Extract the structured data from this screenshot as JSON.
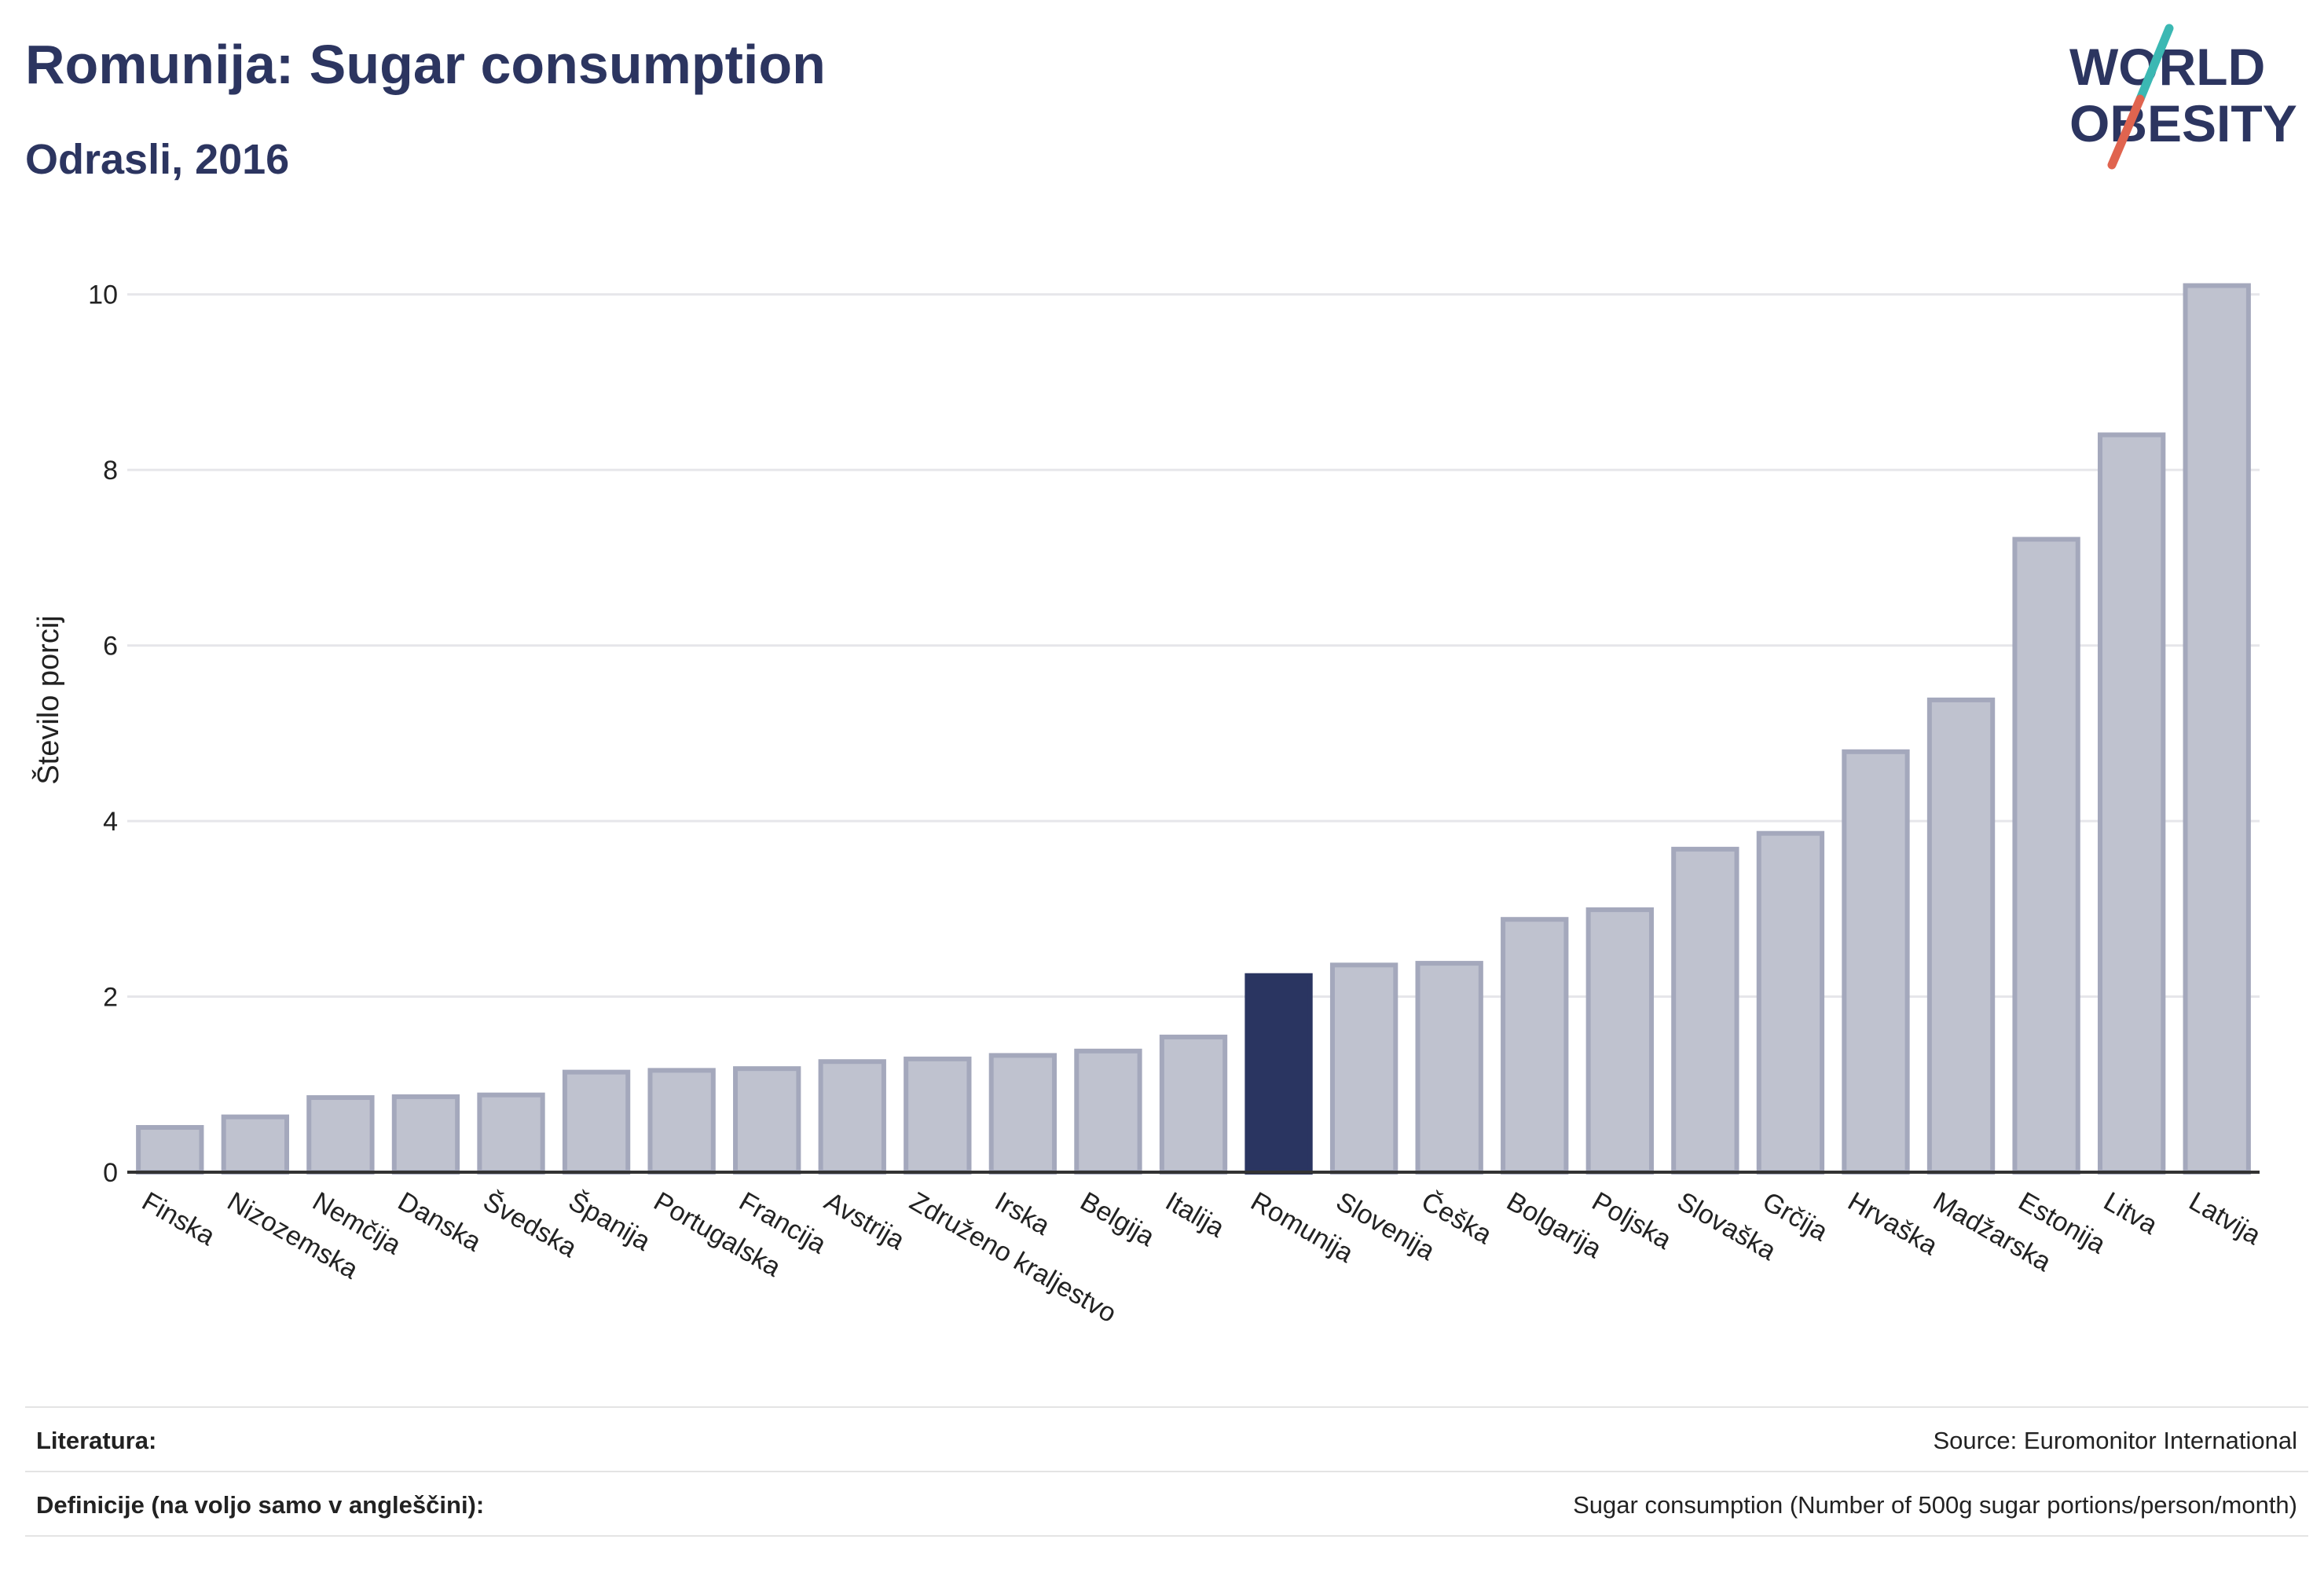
{
  "header": {
    "title": "Romunija: Sugar consumption",
    "subtitle": "Odrasli, 2016"
  },
  "logo": {
    "line1": "WORLD",
    "line2": "OBESITY",
    "colors": {
      "text": "#2c3560",
      "slash_teal": "#3bb8b3",
      "slash_red": "#e0644f"
    }
  },
  "chart_data": {
    "type": "bar",
    "ylabel": "Število porcij",
    "xlabel": "",
    "ylim": [
      0,
      10.4
    ],
    "yticks": [
      0,
      2,
      4,
      6,
      8,
      10
    ],
    "grid": true,
    "highlight": "Romunija",
    "colors": {
      "bar": "#bfc2cf",
      "bar_border": "#a4a8bc",
      "highlight": "#2a3561",
      "grid": "#e6e6ea",
      "axis": "#333333"
    },
    "categories": [
      "Finska",
      "Nizozemska",
      "Nemčija",
      "Danska",
      "Švedska",
      "Španija",
      "Portugalska",
      "Francija",
      "Avstrija",
      "Združeno kraljestvo",
      "Irska",
      "Belgija",
      "Italija",
      "Romunija",
      "Slovenija",
      "Češka",
      "Bolgarija",
      "Poljska",
      "Slovaška",
      "Grčija",
      "Hrvaška",
      "Madžarska",
      "Estonija",
      "Litva",
      "Latvija"
    ],
    "values": [
      0.51,
      0.63,
      0.85,
      0.86,
      0.88,
      1.14,
      1.16,
      1.18,
      1.26,
      1.29,
      1.33,
      1.38,
      1.54,
      2.24,
      2.36,
      2.38,
      2.88,
      2.99,
      3.68,
      3.86,
      4.79,
      5.38,
      7.21,
      8.4,
      10.1
    ]
  },
  "footer": {
    "sources_label": "Literatura:",
    "sources_value": "Source: Euromonitor International",
    "definitions_label": "Definicije (na voljo samo v angleščini):",
    "definitions_value": "Sugar consumption (Number of 500g sugar portions/person/month)"
  }
}
